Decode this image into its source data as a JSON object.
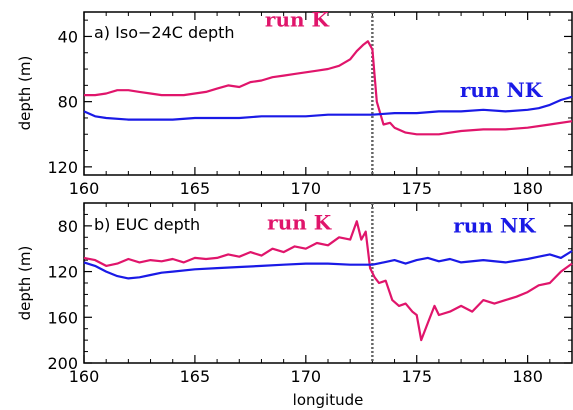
{
  "chart_data": [
    {
      "type": "line",
      "title": "a) Iso−24C depth",
      "xlabel": "",
      "ylabel": "depth (m)",
      "xlim": [
        160,
        182
      ],
      "ylim": [
        125,
        25
      ],
      "y_inverted": true,
      "xticks": [
        "160",
        "165",
        "170",
        "175",
        "180"
      ],
      "yticks": [
        "40",
        "80",
        "120"
      ],
      "vline_x": 173,
      "series": [
        {
          "name": "run K",
          "color": "#e0156b",
          "label_position": "left-of-peak",
          "x": [
            160,
            160.5,
            161,
            161.5,
            162,
            162.5,
            163,
            163.5,
            164,
            164.5,
            165,
            165.5,
            166,
            166.5,
            167,
            167.5,
            168,
            168.5,
            169,
            169.5,
            170,
            170.5,
            171,
            171.5,
            172,
            172.3,
            172.6,
            172.8,
            173,
            173.2,
            173.5,
            173.8,
            174,
            174.5,
            175,
            176,
            177,
            178,
            179,
            180,
            181,
            182
          ],
          "y": [
            76,
            76,
            75,
            73,
            73,
            74,
            75,
            76,
            76,
            76,
            75,
            74,
            72,
            70,
            71,
            68,
            67,
            65,
            64,
            63,
            62,
            61,
            60,
            58,
            54,
            49,
            45,
            43,
            48,
            80,
            94,
            93,
            96,
            99,
            100,
            100,
            98,
            97,
            97,
            96,
            94,
            92
          ]
        },
        {
          "name": "run NK",
          "color": "#1a1ae6",
          "label_position": "upper-right",
          "x": [
            160,
            160.5,
            161,
            162,
            163,
            164,
            165,
            166,
            167,
            168,
            169,
            170,
            171,
            172,
            173,
            174,
            175,
            176,
            177,
            178,
            179,
            180,
            180.5,
            181,
            181.5,
            182
          ],
          "y": [
            86,
            89,
            90,
            91,
            91,
            91,
            90,
            90,
            90,
            89,
            89,
            89,
            88,
            88,
            88,
            87,
            87,
            86,
            86,
            85,
            86,
            85,
            84,
            82,
            79,
            77
          ]
        }
      ]
    },
    {
      "type": "line",
      "title": "b) EUC depth",
      "xlabel": "longitude",
      "ylabel": "depth (m)",
      "xlim": [
        160,
        182
      ],
      "ylim": [
        200,
        60
      ],
      "y_inverted": true,
      "xticks": [
        "160",
        "165",
        "170",
        "175",
        "180"
      ],
      "yticks": [
        "80",
        "120",
        "160",
        "200"
      ],
      "vline_x": 173,
      "series": [
        {
          "name": "run K",
          "color": "#e0156b",
          "label_position": "left-of-peak",
          "x": [
            160,
            160.5,
            161,
            161.5,
            162,
            162.5,
            163,
            163.5,
            164,
            164.5,
            165,
            165.5,
            166,
            166.5,
            167,
            167.5,
            168,
            168.5,
            169,
            169.5,
            170,
            170.5,
            171,
            171.5,
            172,
            172.3,
            172.5,
            172.7,
            172.9,
            173.1,
            173.3,
            173.6,
            173.9,
            174.2,
            174.5,
            174.8,
            175,
            175.2,
            175.5,
            175.8,
            176,
            176.5,
            177,
            177.5,
            178,
            178.5,
            179,
            179.5,
            180,
            180.5,
            181,
            181.5,
            182
          ],
          "y": [
            108,
            110,
            115,
            113,
            109,
            112,
            110,
            111,
            109,
            112,
            108,
            109,
            108,
            105,
            107,
            103,
            106,
            100,
            103,
            98,
            100,
            95,
            97,
            90,
            92,
            76,
            92,
            85,
            117,
            125,
            130,
            128,
            145,
            150,
            148,
            155,
            158,
            180,
            165,
            150,
            158,
            155,
            150,
            155,
            145,
            148,
            145,
            142,
            138,
            132,
            130,
            120,
            113
          ]
        },
        {
          "name": "run NK",
          "color": "#1a1ae6",
          "label_position": "upper-right",
          "x": [
            160,
            160.5,
            161,
            161.5,
            162,
            162.5,
            163,
            163.5,
            164,
            165,
            166,
            167,
            168,
            169,
            170,
            171,
            172,
            173,
            173.5,
            174,
            174.5,
            175,
            175.5,
            176,
            176.5,
            177,
            178,
            179,
            180,
            180.5,
            181,
            181.5,
            182
          ],
          "y": [
            112,
            115,
            120,
            124,
            126,
            125,
            123,
            121,
            120,
            118,
            117,
            116,
            115,
            114,
            113,
            113,
            114,
            114,
            112,
            110,
            113,
            110,
            108,
            111,
            109,
            112,
            110,
            112,
            109,
            107,
            105,
            108,
            102
          ]
        }
      ]
    }
  ]
}
